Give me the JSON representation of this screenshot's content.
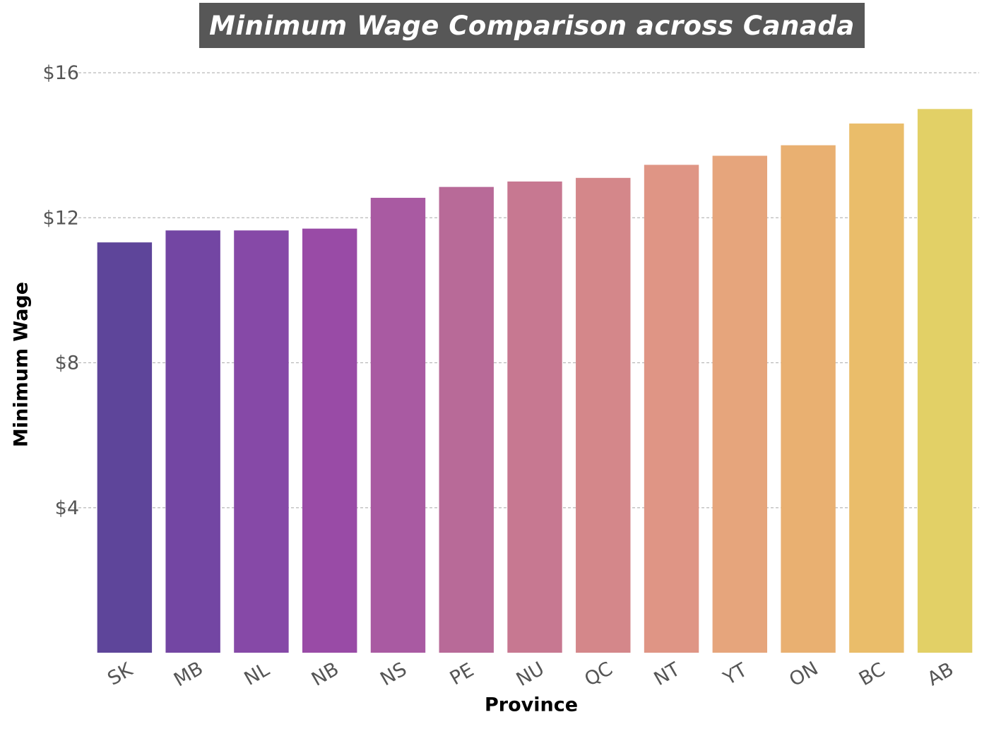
{
  "chart_data": {
    "type": "bar",
    "title": "Minimum Wage Comparison across Canada",
    "xlabel": "Province",
    "ylabel": "Minimum Wage",
    "categories": [
      "SK",
      "MB",
      "NL",
      "NB",
      "NS",
      "PE",
      "NU",
      "QC",
      "NT",
      "YT",
      "ON",
      "BC",
      "AB"
    ],
    "values": [
      11.32,
      11.65,
      11.65,
      11.7,
      12.55,
      12.85,
      13.0,
      13.1,
      13.46,
      13.71,
      14.0,
      14.6,
      15.0
    ],
    "ylim": [
      0,
      16
    ],
    "yticks": [
      4,
      8,
      12,
      16
    ],
    "ytick_labels": [
      "$4",
      "$8",
      "$12",
      "$16"
    ],
    "grid": "horizontal dashed",
    "colors": [
      "#5e459a",
      "#7346a3",
      "#8649a7",
      "#994ba6",
      "#a95aa2",
      "#b86a98",
      "#c77891",
      "#d4878a",
      "#df9585",
      "#e6a57c",
      "#e9b071",
      "#eabd6a",
      "#e2d066"
    ],
    "title_background": "#575757"
  }
}
